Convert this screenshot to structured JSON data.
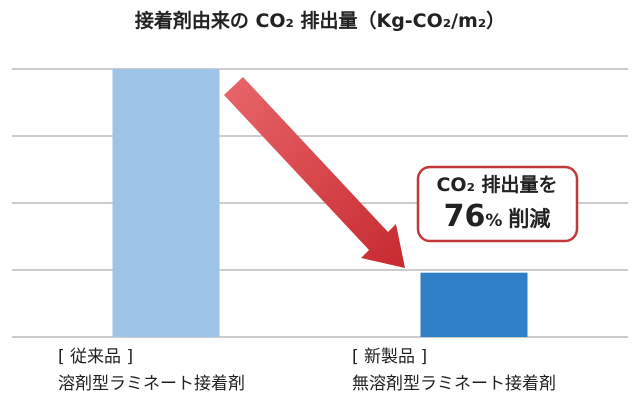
{
  "chart_data": {
    "type": "bar",
    "title": "接着剤由来の CO₂ 排出量（Kg-CO₂/m₂）",
    "categories": [
      [
        "[ 従来品 ]",
        "溶剤型ラミネート接着剤"
      ],
      [
        "[ 新製品 ]",
        "無溶剤型ラミネート接着剤"
      ]
    ],
    "values": [
      4,
      0.96
    ],
    "colors": [
      "#9dc3e6",
      "#2e7fc6"
    ],
    "ylim": [
      0,
      4
    ],
    "yticks": [
      0,
      1,
      2,
      3,
      4
    ],
    "grid": true,
    "annotation": [
      "CO₂ 排出量を",
      [
        "76",
        "%",
        "削減"
      ]
    ]
  }
}
